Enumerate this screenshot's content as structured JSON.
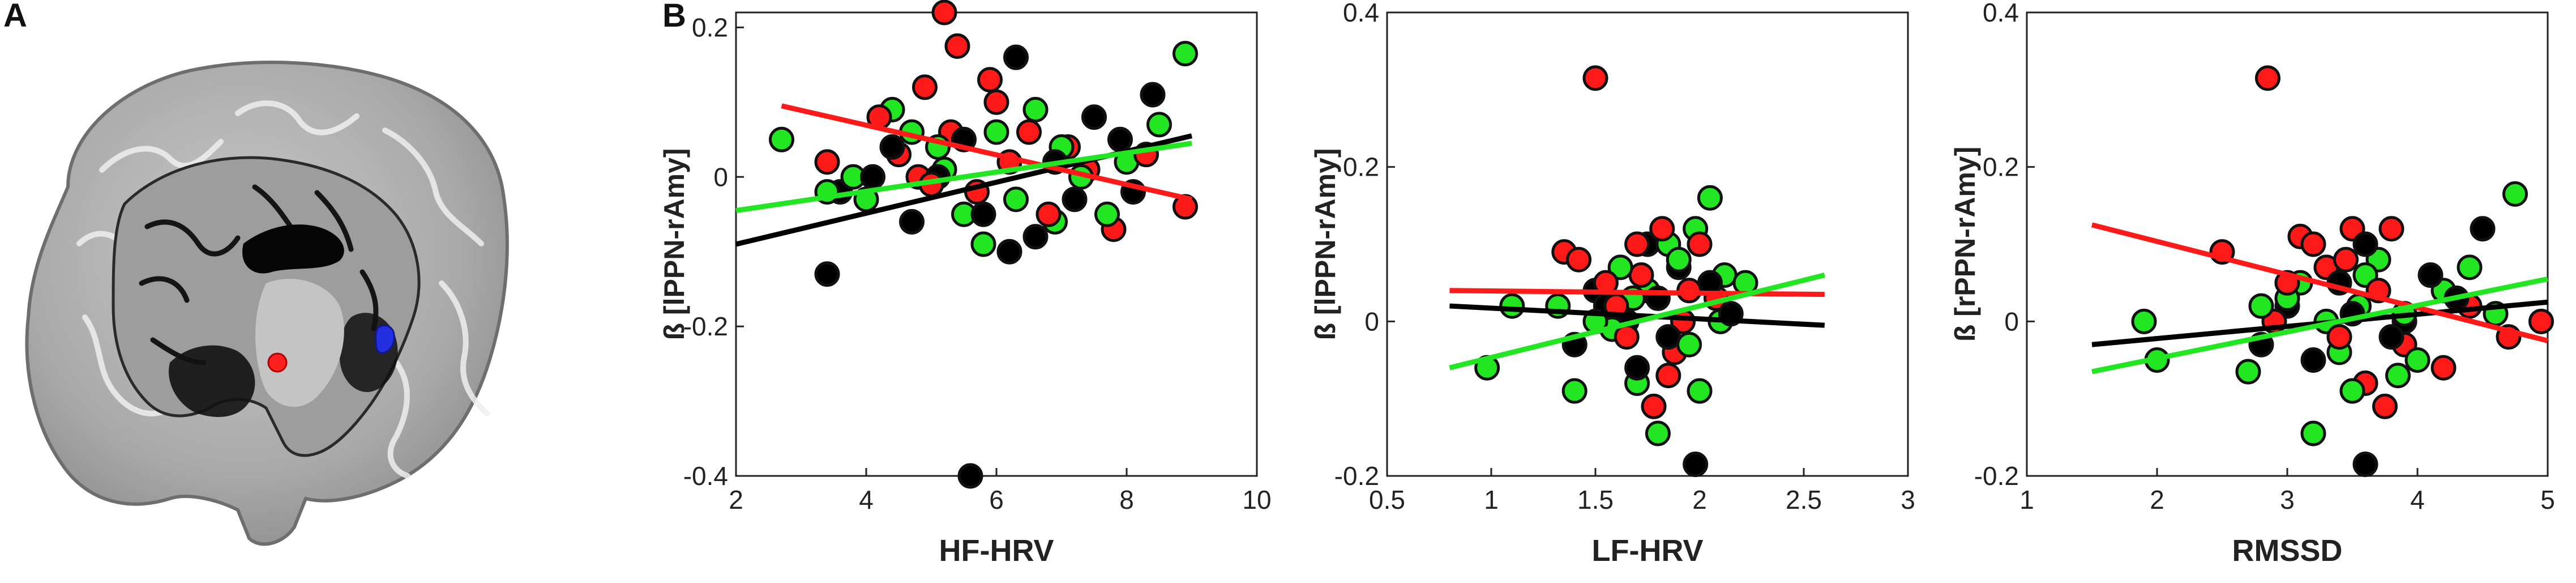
{
  "panels": {
    "a_label": "A",
    "b_label": "B"
  },
  "colors": {
    "black": "#000000",
    "red": "#ff1a1a",
    "green": "#22e622",
    "brain_fill": "#b9b9b9",
    "roi_red": "#ff2020",
    "roi_blue": "#2430e0"
  },
  "chart_data": [
    {
      "type": "scatter",
      "xlabel": "HF-HRV",
      "ylabel": "ß [lPPN-rAmy]",
      "xlim": [
        2,
        10
      ],
      "ylim": [
        -0.4,
        0.22
      ],
      "xticks": [
        2,
        4,
        6,
        8,
        10
      ],
      "yticks": [
        -0.4,
        -0.2,
        0,
        0.2
      ],
      "xtick_labels": [
        "2",
        "4",
        "6",
        "8",
        "10"
      ],
      "ytick_labels": [
        "-0.4",
        "-0.2",
        "0",
        "0.2"
      ],
      "grid": false,
      "lines": [
        {
          "color": "black",
          "x": [
            2,
            9
          ],
          "y": [
            -0.09,
            0.055
          ]
        },
        {
          "color": "red",
          "x": [
            2.7,
            9
          ],
          "y": [
            0.095,
            -0.03
          ]
        },
        {
          "color": "green",
          "x": [
            2,
            9
          ],
          "y": [
            -0.045,
            0.045
          ]
        }
      ],
      "points": {
        "black": [
          [
            5.6,
            -0.4
          ],
          [
            3.4,
            -0.13
          ],
          [
            6.2,
            -0.1
          ],
          [
            7.2,
            -0.03
          ],
          [
            4.4,
            0.04
          ],
          [
            6.6,
            -0.08
          ],
          [
            8.4,
            0.11
          ],
          [
            5.1,
            0.0
          ],
          [
            7.9,
            0.05
          ],
          [
            4.7,
            -0.06
          ],
          [
            6.3,
            0.16
          ],
          [
            5.8,
            -0.05
          ],
          [
            8.1,
            -0.02
          ],
          [
            4.1,
            0.0
          ],
          [
            7.5,
            0.08
          ],
          [
            3.6,
            -0.02
          ],
          [
            5.5,
            0.05
          ],
          [
            6.9,
            0.02
          ]
        ],
        "red": [
          [
            5.2,
            0.22
          ],
          [
            5.4,
            0.175
          ],
          [
            4.9,
            0.12
          ],
          [
            6.0,
            0.1
          ],
          [
            8.9,
            -0.04
          ],
          [
            3.4,
            0.02
          ],
          [
            5.7,
            -0.02
          ],
          [
            6.5,
            0.06
          ],
          [
            4.5,
            0.03
          ],
          [
            7.8,
            -0.07
          ],
          [
            7.1,
            0.04
          ],
          [
            5.0,
            -0.01
          ],
          [
            6.2,
            0.02
          ],
          [
            4.2,
            0.08
          ],
          [
            8.3,
            0.03
          ],
          [
            5.9,
            0.13
          ],
          [
            6.8,
            -0.05
          ],
          [
            4.8,
            0.0
          ],
          [
            7.4,
            0.01
          ],
          [
            5.3,
            0.06
          ]
        ],
        "green": [
          [
            2.7,
            0.05
          ],
          [
            8.9,
            0.165
          ],
          [
            6.6,
            0.09
          ],
          [
            5.8,
            -0.09
          ],
          [
            4.0,
            -0.03
          ],
          [
            3.4,
            -0.02
          ],
          [
            7.0,
            0.04
          ],
          [
            4.7,
            0.06
          ],
          [
            6.3,
            -0.03
          ],
          [
            7.7,
            -0.05
          ],
          [
            8.5,
            0.07
          ],
          [
            5.1,
            0.04
          ],
          [
            3.8,
            0.0
          ],
          [
            6.0,
            0.06
          ],
          [
            7.3,
            0.0
          ],
          [
            5.5,
            -0.05
          ],
          [
            4.4,
            0.09
          ],
          [
            6.9,
            -0.06
          ],
          [
            8.0,
            0.02
          ],
          [
            5.2,
            0.01
          ]
        ]
      }
    },
    {
      "type": "scatter",
      "xlabel": "LF-HRV",
      "ylabel": "ß [lPPN-rAmy]",
      "xlim": [
        0.5,
        3
      ],
      "ylim": [
        -0.2,
        0.4
      ],
      "xticks": [
        0.5,
        1,
        1.5,
        2,
        2.5,
        3
      ],
      "yticks": [
        -0.2,
        0,
        0.2,
        0.4
      ],
      "xtick_labels": [
        "0.5",
        "1",
        "1.5",
        "2",
        "2.5",
        "3"
      ],
      "ytick_labels": [
        "-0.2",
        "0",
        "0.2",
        "0.4"
      ],
      "grid": false,
      "lines": [
        {
          "color": "black",
          "x": [
            0.8,
            2.6
          ],
          "y": [
            0.02,
            -0.005
          ]
        },
        {
          "color": "red",
          "x": [
            0.8,
            2.6
          ],
          "y": [
            0.04,
            0.035
          ]
        },
        {
          "color": "green",
          "x": [
            0.8,
            2.6
          ],
          "y": [
            -0.06,
            0.06
          ]
        }
      ],
      "points": {
        "black": [
          [
            1.98,
            -0.185
          ],
          [
            1.5,
            0.04
          ],
          [
            1.75,
            0.1
          ],
          [
            1.85,
            -0.02
          ],
          [
            1.65,
            0.0
          ],
          [
            2.05,
            0.05
          ],
          [
            1.4,
            -0.03
          ],
          [
            1.9,
            0.07
          ],
          [
            1.7,
            -0.06
          ],
          [
            2.15,
            0.01
          ],
          [
            1.55,
            0.02
          ],
          [
            1.8,
            0.03
          ]
        ],
        "red": [
          [
            1.5,
            0.315
          ],
          [
            1.35,
            0.09
          ],
          [
            1.42,
            0.08
          ],
          [
            1.78,
            -0.11
          ],
          [
            1.82,
            0.12
          ],
          [
            1.95,
            0.04
          ],
          [
            1.6,
            0.02
          ],
          [
            1.72,
            0.06
          ],
          [
            1.88,
            -0.04
          ],
          [
            2.0,
            0.1
          ],
          [
            1.65,
            -0.02
          ],
          [
            1.55,
            0.05
          ],
          [
            1.92,
            0.0
          ],
          [
            2.08,
            0.03
          ],
          [
            1.7,
            0.1
          ],
          [
            1.85,
            -0.07
          ]
        ],
        "green": [
          [
            0.98,
            -0.06
          ],
          [
            1.1,
            0.02
          ],
          [
            1.4,
            -0.09
          ],
          [
            1.8,
            -0.145
          ],
          [
            2.0,
            -0.09
          ],
          [
            2.05,
            0.16
          ],
          [
            2.12,
            0.06
          ],
          [
            2.22,
            0.05
          ],
          [
            1.32,
            0.02
          ],
          [
            1.58,
            -0.01
          ],
          [
            1.75,
            0.04
          ],
          [
            1.9,
            0.08
          ],
          [
            1.62,
            0.07
          ],
          [
            1.95,
            -0.03
          ],
          [
            2.1,
            0.0
          ],
          [
            1.7,
            -0.08
          ],
          [
            1.85,
            0.1
          ],
          [
            1.5,
            0.0
          ],
          [
            1.98,
            0.12
          ],
          [
            1.68,
            0.03
          ]
        ]
      }
    },
    {
      "type": "scatter",
      "xlabel": "RMSSD",
      "ylabel": "ß [rPPN-rAmy]",
      "xlim": [
        1,
        5
      ],
      "ylim": [
        -0.2,
        0.4
      ],
      "xticks": [
        1,
        2,
        3,
        4,
        5
      ],
      "yticks": [
        -0.2,
        0,
        0.2,
        0.4
      ],
      "xtick_labels": [
        "1",
        "2",
        "3",
        "4",
        "5"
      ],
      "ytick_labels": [
        "-0.2",
        "0",
        "0.2",
        "0.4"
      ],
      "grid": false,
      "lines": [
        {
          "color": "black",
          "x": [
            1.5,
            5
          ],
          "y": [
            -0.03,
            0.025
          ]
        },
        {
          "color": "red",
          "x": [
            1.5,
            5
          ],
          "y": [
            0.125,
            -0.025
          ]
        },
        {
          "color": "green",
          "x": [
            1.5,
            5
          ],
          "y": [
            -0.065,
            0.055
          ]
        }
      ],
      "points": {
        "black": [
          [
            3.6,
            -0.185
          ],
          [
            4.5,
            0.12
          ],
          [
            3.4,
            0.05
          ],
          [
            3.8,
            -0.02
          ],
          [
            4.1,
            0.06
          ],
          [
            3.0,
            0.02
          ],
          [
            3.6,
            0.1
          ],
          [
            2.8,
            -0.03
          ],
          [
            3.9,
            0.0
          ],
          [
            4.3,
            0.03
          ],
          [
            3.2,
            -0.05
          ],
          [
            3.5,
            0.01
          ]
        ],
        "red": [
          [
            2.85,
            0.315
          ],
          [
            2.5,
            0.09
          ],
          [
            3.2,
            0.1
          ],
          [
            3.5,
            0.12
          ],
          [
            3.8,
            0.12
          ],
          [
            4.95,
            0.0
          ],
          [
            3.0,
            0.05
          ],
          [
            3.4,
            -0.02
          ],
          [
            3.7,
            0.04
          ],
          [
            4.2,
            -0.06
          ],
          [
            2.9,
            0.0
          ],
          [
            3.3,
            0.07
          ],
          [
            3.9,
            -0.03
          ],
          [
            4.4,
            0.02
          ],
          [
            3.1,
            0.11
          ],
          [
            3.6,
            -0.08
          ],
          [
            4.7,
            -0.02
          ],
          [
            3.75,
            -0.11
          ],
          [
            3.45,
            0.08
          ]
        ],
        "green": [
          [
            1.9,
            0.0
          ],
          [
            2.0,
            -0.05
          ],
          [
            2.7,
            -0.065
          ],
          [
            3.2,
            -0.145
          ],
          [
            3.5,
            -0.09
          ],
          [
            4.75,
            0.165
          ],
          [
            3.0,
            0.03
          ],
          [
            3.3,
            0.0
          ],
          [
            3.6,
            0.06
          ],
          [
            3.9,
            0.01
          ],
          [
            4.2,
            0.04
          ],
          [
            2.8,
            0.02
          ],
          [
            3.4,
            -0.04
          ],
          [
            3.7,
            0.08
          ],
          [
            4.0,
            -0.05
          ],
          [
            4.4,
            0.07
          ],
          [
            3.1,
            0.05
          ],
          [
            3.55,
            0.02
          ],
          [
            3.85,
            -0.07
          ],
          [
            4.6,
            0.01
          ]
        ]
      }
    }
  ]
}
